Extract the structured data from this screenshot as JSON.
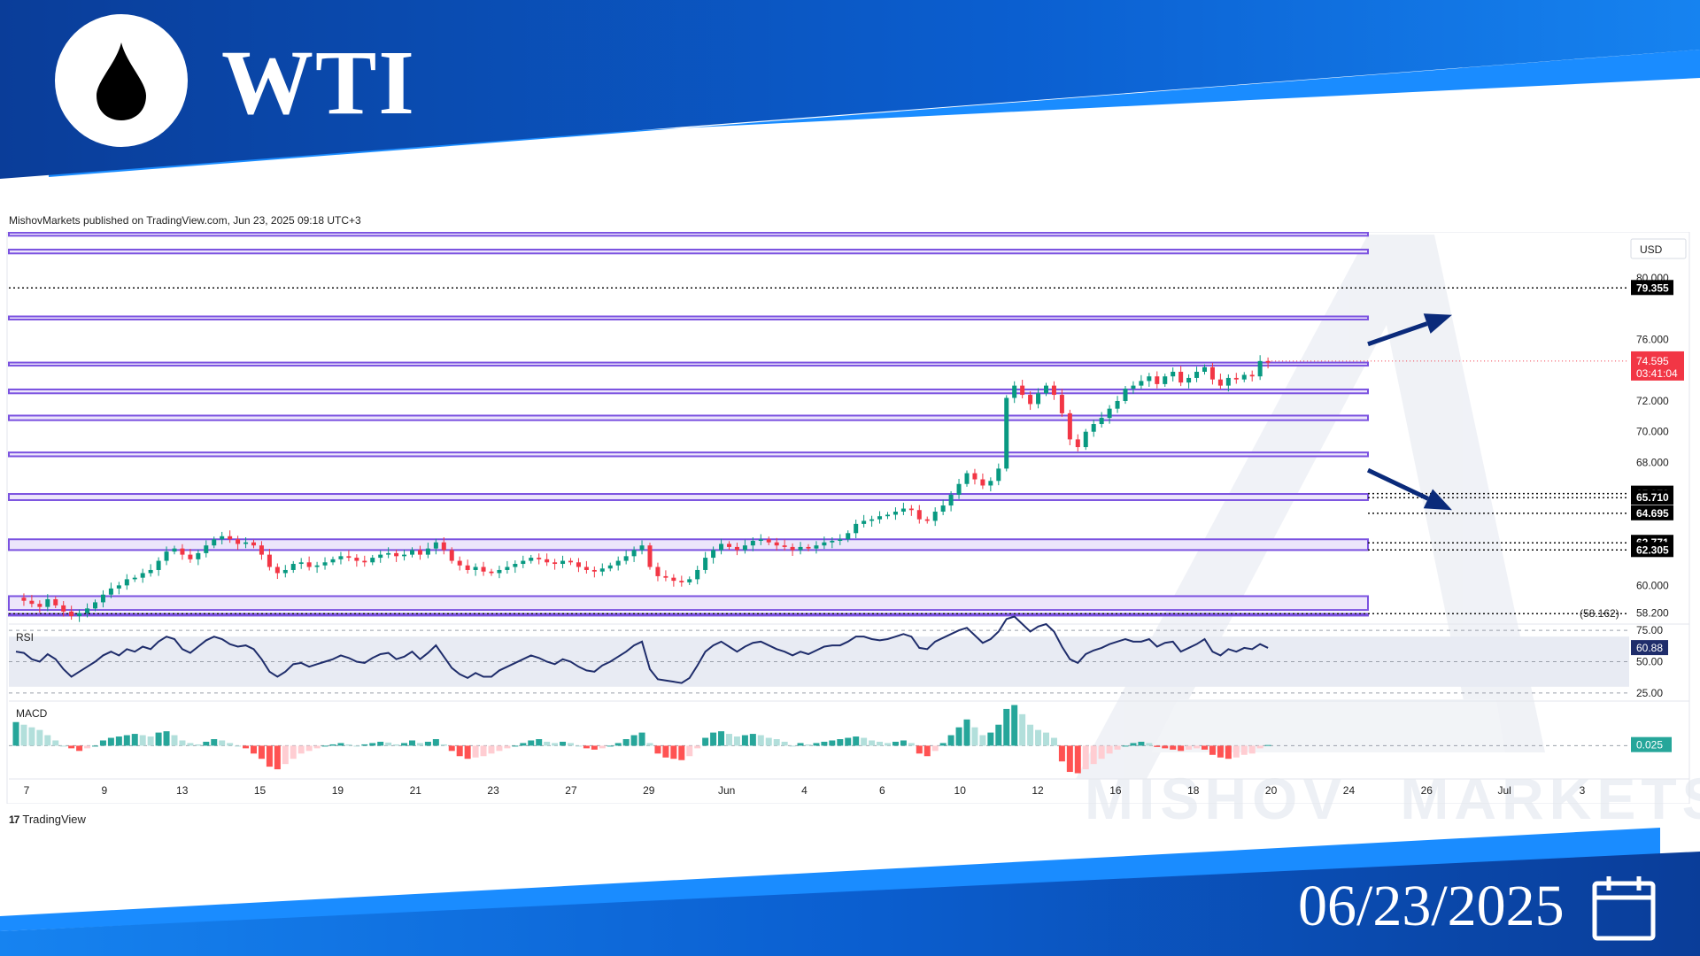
{
  "header": {
    "symbol": "WTI",
    "logo_icon": "oil-drop-icon",
    "brand_blue": "#0a4fb3",
    "accent_blue": "#1a8cff"
  },
  "published_line": "MishovMarkets published on TradingView.com, Jun 23, 2025 09:18 UTC+3",
  "footer": {
    "tradingview_label": "TradingView",
    "date": "06/23/2025",
    "calendar_icon": "calendar-icon"
  },
  "watermark": {
    "text_left": "MISHOV",
    "text_right": "MARKETS"
  },
  "chart_data": {
    "type": "candlestick",
    "currency_label": "USD",
    "price_ylim": [
      57.6,
      83.0
    ],
    "price_ticks": [
      "80.000",
      "76.000",
      "72.000",
      "70.000",
      "68.000",
      "60.000",
      "58.200"
    ],
    "x_ticks": [
      "7",
      "9",
      "13",
      "15",
      "19",
      "21",
      "23",
      "27",
      "29",
      "Jun",
      "4",
      "6",
      "10",
      "12",
      "16",
      "18",
      "20",
      "24",
      "26",
      "Jul",
      "3"
    ],
    "current_price": {
      "value": "74.595",
      "countdown": "03:41:04",
      "color": "#f23645"
    },
    "dotted_levels": [
      {
        "value": 79.355,
        "label": "79.355"
      },
      {
        "value": 65.973,
        "label": "65.973"
      },
      {
        "value": 65.71,
        "label": "65.710"
      },
      {
        "value": 64.695,
        "label": "64.695"
      },
      {
        "value": 62.771,
        "label": "62.771"
      },
      {
        "value": 62.305,
        "label": "62.305"
      },
      {
        "value": 58.162,
        "label": "(58.162)"
      }
    ],
    "zones": [
      [
        82.75,
        82.95
      ],
      [
        81.6,
        81.85
      ],
      [
        77.3,
        77.5
      ],
      [
        74.3,
        74.5
      ],
      [
        72.5,
        72.75
      ],
      [
        70.75,
        71.05
      ],
      [
        68.4,
        68.65
      ],
      [
        65.55,
        65.95
      ],
      [
        62.3,
        63.0
      ],
      [
        58.4,
        59.3
      ],
      [
        58.05,
        58.15
      ]
    ],
    "arrows": [
      {
        "direction": "up",
        "from": 75.7,
        "to": 77.6
      },
      {
        "direction": "down",
        "from": 67.5,
        "to": 64.9
      }
    ],
    "price_series": [
      59.2,
      59.0,
      58.8,
      58.6,
      59.1,
      58.7,
      58.3,
      58.0,
      58.2,
      58.5,
      58.9,
      59.4,
      59.8,
      60.0,
      60.4,
      60.5,
      60.8,
      61.0,
      61.6,
      62.2,
      62.4,
      62.0,
      61.7,
      62.1,
      62.6,
      63.0,
      63.2,
      63.0,
      62.7,
      62.8,
      62.6,
      62.0,
      61.2,
      60.8,
      61.0,
      61.4,
      61.5,
      61.2,
      61.3,
      61.5,
      61.7,
      61.9,
      61.8,
      61.6,
      61.5,
      61.8,
      62.0,
      62.1,
      61.9,
      62.0,
      62.3,
      62.0,
      62.4,
      62.8,
      62.3,
      61.6,
      61.3,
      61.0,
      61.2,
      60.9,
      60.8,
      61.0,
      61.2,
      61.4,
      61.6,
      61.8,
      61.7,
      61.5,
      61.4,
      61.6,
      61.5,
      61.2,
      61.0,
      60.9,
      61.1,
      61.3,
      61.6,
      61.9,
      62.3,
      62.6,
      61.2,
      60.6,
      60.5,
      60.3,
      60.2,
      60.4,
      61.0,
      61.8,
      62.3,
      62.7,
      62.5,
      62.3,
      62.6,
      62.9,
      63.0,
      62.8,
      62.6,
      62.5,
      62.3,
      62.5,
      62.4,
      62.6,
      62.8,
      62.9,
      63.0,
      63.4,
      64.0,
      64.2,
      64.3,
      64.5,
      64.6,
      64.8,
      65.0,
      64.9,
      64.3,
      64.2,
      64.8,
      65.2,
      65.9,
      66.6,
      67.3,
      66.9,
      66.5,
      66.8,
      67.6,
      72.2,
      73.0,
      72.4,
      71.8,
      72.5,
      73.0,
      72.4,
      71.2,
      69.5,
      69.0,
      70.0,
      70.5,
      70.9,
      71.5,
      72.0,
      72.8,
      73.0,
      73.3,
      73.6,
      73.1,
      73.6,
      73.9,
      73.2,
      73.5,
      73.9,
      74.2,
      73.4,
      73.0,
      73.5,
      73.4,
      73.7,
      73.6,
      74.6,
      74.5
    ],
    "rsi": {
      "label": "RSI",
      "current": "60.88",
      "ticks": [
        "75.00",
        "50.00",
        "25.00"
      ],
      "ylim": [
        20,
        80
      ],
      "series": [
        58,
        57,
        52,
        50,
        56,
        52,
        44,
        38,
        42,
        46,
        50,
        55,
        58,
        55,
        60,
        58,
        62,
        60,
        66,
        70,
        68,
        60,
        57,
        62,
        67,
        70,
        68,
        64,
        62,
        63,
        60,
        52,
        42,
        38,
        42,
        48,
        49,
        46,
        48,
        50,
        52,
        55,
        53,
        50,
        49,
        53,
        56,
        57,
        52,
        54,
        58,
        52,
        57,
        63,
        54,
        45,
        40,
        37,
        41,
        38,
        38,
        43,
        46,
        49,
        52,
        55,
        53,
        50,
        48,
        52,
        50,
        46,
        43,
        42,
        47,
        50,
        54,
        58,
        63,
        66,
        44,
        36,
        35,
        34,
        33,
        37,
        47,
        58,
        63,
        66,
        62,
        58,
        62,
        65,
        66,
        63,
        60,
        58,
        55,
        58,
        56,
        59,
        62,
        63,
        63,
        66,
        70,
        70,
        68,
        67,
        68,
        70,
        72,
        70,
        61,
        60,
        66,
        69,
        72,
        75,
        77,
        71,
        65,
        68,
        74,
        84,
        86,
        80,
        74,
        78,
        80,
        74,
        62,
        52,
        49,
        56,
        59,
        61,
        64,
        66,
        68,
        66,
        66,
        68,
        62,
        65,
        66,
        58,
        61,
        64,
        68,
        58,
        55,
        60,
        58,
        61,
        60,
        64,
        61
      ]
    },
    "macd": {
      "label": "MACD",
      "current": "0.025",
      "ylim": [
        -1.1,
        1.6
      ],
      "histogram": [
        0.9,
        0.8,
        0.7,
        0.6,
        0.4,
        0.2,
        0.0,
        -0.1,
        -0.2,
        -0.1,
        0.0,
        0.2,
        0.3,
        0.35,
        0.4,
        0.45,
        0.4,
        0.35,
        0.5,
        0.55,
        0.4,
        0.2,
        0.1,
        0.05,
        0.15,
        0.25,
        0.2,
        0.1,
        0.0,
        -0.1,
        -0.3,
        -0.5,
        -0.8,
        -0.9,
        -0.7,
        -0.5,
        -0.3,
        -0.2,
        -0.1,
        0.0,
        0.05,
        0.1,
        0.05,
        0.0,
        0.05,
        0.1,
        0.15,
        0.12,
        0.05,
        0.1,
        0.2,
        0.1,
        0.15,
        0.25,
        0.05,
        -0.2,
        -0.4,
        -0.5,
        -0.45,
        -0.4,
        -0.3,
        -0.2,
        -0.1,
        0.0,
        0.1,
        0.2,
        0.25,
        0.15,
        0.1,
        0.15,
        0.1,
        0.0,
        -0.1,
        -0.15,
        -0.1,
        0.0,
        0.1,
        0.25,
        0.4,
        0.5,
        0.1,
        -0.3,
        -0.45,
        -0.5,
        -0.55,
        -0.4,
        -0.1,
        0.3,
        0.5,
        0.55,
        0.45,
        0.35,
        0.4,
        0.45,
        0.4,
        0.3,
        0.25,
        0.15,
        0.0,
        0.1,
        0.05,
        0.1,
        0.15,
        0.2,
        0.25,
        0.3,
        0.35,
        0.3,
        0.2,
        0.15,
        0.1,
        0.15,
        0.2,
        0.1,
        -0.3,
        -0.4,
        -0.2,
        0.1,
        0.4,
        0.7,
        1.0,
        0.7,
        0.4,
        0.5,
        0.8,
        1.4,
        1.55,
        1.2,
        0.8,
        0.6,
        0.5,
        0.3,
        -0.6,
        -1.0,
        -1.05,
        -0.9,
        -0.7,
        -0.5,
        -0.3,
        -0.15,
        0.0,
        0.1,
        0.15,
        0.1,
        -0.05,
        -0.1,
        -0.15,
        -0.2,
        -0.15,
        -0.1,
        -0.15,
        -0.35,
        -0.45,
        -0.5,
        -0.45,
        -0.35,
        -0.3,
        -0.1,
        0.025
      ]
    }
  }
}
